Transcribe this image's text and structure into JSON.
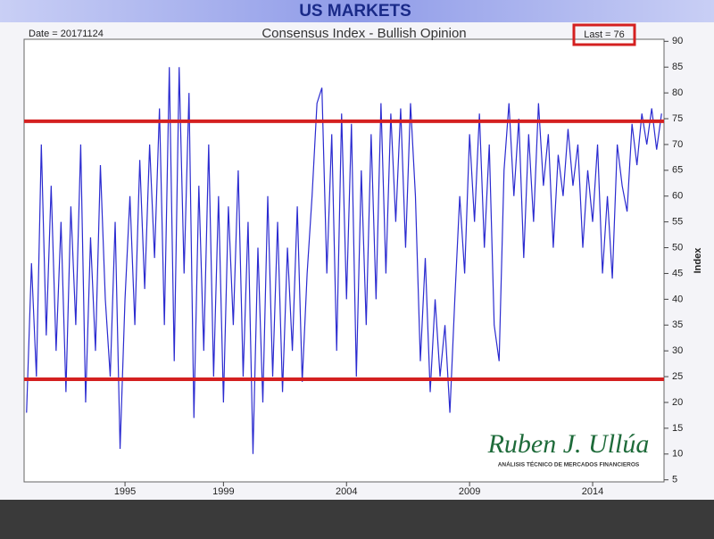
{
  "chart_data": {
    "type": "line",
    "header": "US MARKETS",
    "title": "Consensus Index - Bullish Opinion",
    "date_label": "Date = 20171124",
    "last_label": "Last = 76",
    "y_label": "Index",
    "watermark": "Ruben J. Ullúa",
    "watermark_sub": "ANÁLISIS TÉCNICO DE MERCADOS FINANCIEROS",
    "x": [
      1991.0,
      1991.2,
      1991.4,
      1991.6,
      1991.8,
      1992.0,
      1992.2,
      1992.4,
      1992.6,
      1992.8,
      1993.0,
      1993.2,
      1993.4,
      1993.6,
      1993.8,
      1994.0,
      1994.2,
      1994.4,
      1994.6,
      1994.8,
      1995.0,
      1995.2,
      1995.4,
      1995.6,
      1995.8,
      1996.0,
      1996.2,
      1996.4,
      1996.6,
      1996.8,
      1997.0,
      1997.2,
      1997.4,
      1997.6,
      1997.8,
      1998.0,
      1998.2,
      1998.4,
      1998.6,
      1998.8,
      1999.0,
      1999.2,
      1999.4,
      1999.6,
      1999.8,
      2000.0,
      2000.2,
      2000.4,
      2000.6,
      2000.8,
      2001.0,
      2001.2,
      2001.4,
      2001.6,
      2001.8,
      2002.0,
      2002.2,
      2002.4,
      2002.6,
      2002.8,
      2003.0,
      2003.2,
      2003.4,
      2003.6,
      2003.8,
      2004.0,
      2004.2,
      2004.4,
      2004.6,
      2004.8,
      2005.0,
      2005.2,
      2005.4,
      2005.6,
      2005.8,
      2006.0,
      2006.2,
      2006.4,
      2006.6,
      2006.8,
      2007.0,
      2007.2,
      2007.4,
      2007.6,
      2007.8,
      2008.0,
      2008.2,
      2008.4,
      2008.6,
      2008.8,
      2009.0,
      2009.2,
      2009.4,
      2009.6,
      2009.8,
      2010.0,
      2010.2,
      2010.4,
      2010.6,
      2010.8,
      2011.0,
      2011.2,
      2011.4,
      2011.6,
      2011.8,
      2012.0,
      2012.2,
      2012.4,
      2012.6,
      2012.8,
      2013.0,
      2013.2,
      2013.4,
      2013.6,
      2013.8,
      2014.0,
      2014.2,
      2014.4,
      2014.6,
      2014.8,
      2015.0,
      2015.2,
      2015.4,
      2015.6,
      2015.8,
      2016.0,
      2016.2,
      2016.4,
      2016.6,
      2016.8
    ],
    "series": [
      {
        "name": "Consensus Index",
        "color": "#2b2bd0",
        "values": [
          18,
          47,
          25,
          70,
          33,
          62,
          30,
          55,
          22,
          58,
          35,
          70,
          20,
          52,
          30,
          66,
          40,
          25,
          55,
          11,
          40,
          60,
          35,
          67,
          42,
          70,
          48,
          77,
          35,
          85,
          28,
          85,
          45,
          80,
          17,
          62,
          30,
          70,
          25,
          60,
          20,
          58,
          35,
          65,
          25,
          55,
          10,
          50,
          20,
          60,
          25,
          55,
          22,
          50,
          30,
          58,
          24,
          45,
          60,
          78,
          81,
          45,
          72,
          30,
          76,
          40,
          74,
          25,
          65,
          35,
          72,
          40,
          78,
          45,
          76,
          55,
          77,
          50,
          78,
          60,
          28,
          48,
          22,
          40,
          25,
          35,
          18,
          40,
          60,
          45,
          72,
          55,
          76,
          50,
          70,
          35,
          28,
          65,
          78,
          60,
          75,
          48,
          72,
          55,
          78,
          62,
          72,
          50,
          68,
          60,
          73,
          62,
          70,
          50,
          65,
          55,
          70,
          45,
          60,
          44,
          70,
          62,
          57,
          74,
          66,
          76,
          70,
          77,
          69,
          76
        ]
      }
    ],
    "reference_lines": [
      74.5,
      24.5
    ],
    "reference_color": "#d42020",
    "xlim": [
      1990.9,
      2016.9
    ],
    "xticks": [
      1995,
      1999,
      2004,
      2009,
      2014
    ],
    "ylim": [
      4.6,
      90.4
    ],
    "yticks": [
      5,
      10,
      15,
      20,
      25,
      30,
      35,
      40,
      45,
      50,
      55,
      60,
      65,
      70,
      75,
      80,
      85,
      90
    ],
    "grid": false
  }
}
